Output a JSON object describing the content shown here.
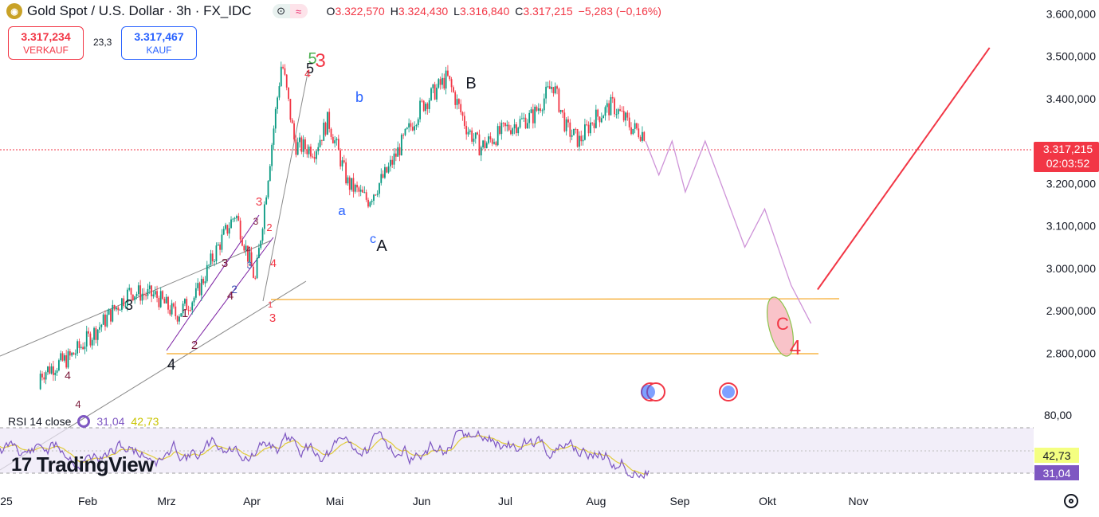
{
  "header": {
    "icon": "gold-coin-icon",
    "title": "Gold Spot / U.S. Dollar · 3h · FX_IDC",
    "ohlc": [
      {
        "k": "O",
        "v": "3.322,570"
      },
      {
        "k": "H",
        "v": "3.324,430"
      },
      {
        "k": "L",
        "v": "3.316,840"
      },
      {
        "k": "C",
        "v": "3.317,215"
      },
      {
        "k": "",
        "v": "−5,283 (−0,16%)"
      }
    ]
  },
  "trade": {
    "sell_price": "3.317,234",
    "sell_label": "VERKAUF",
    "spread": "23,3",
    "buy_price": "3.317,467",
    "buy_label": "KAUF"
  },
  "rsi_legend": {
    "label": "RSI 14 close",
    "v1": "31,04",
    "v2": "42,73"
  },
  "logo": "TradingView",
  "chart_data": [
    {
      "type": "line",
      "title": "Gold Spot / U.S. Dollar · 3h · FX_IDC",
      "y_axis_ticks": [
        "3.600,000",
        "3.500,000",
        "3.400,000",
        "3.300,000",
        "3.200,000",
        "3.100,000",
        "3.000,000",
        "2.900,000",
        "2.800,000"
      ],
      "ylim": [
        2750,
        3660
      ],
      "x_ticks": [
        "25",
        "Feb",
        "Mrz",
        "Apr",
        "Mai",
        "Jun",
        "Jul",
        "Aug",
        "Sep",
        "Okt",
        "Nov"
      ],
      "series": [
        {
          "values": [
            [
              0,
              2715
            ],
            [
              0.5,
              2748
            ],
            [
              1,
              2790
            ],
            [
              1.4,
              2855
            ],
            [
              1.9,
              2945
            ],
            [
              2.3,
              2935
            ],
            [
              2.6,
              2890
            ],
            [
              2.9,
              2935
            ],
            [
              3.2,
              3040
            ],
            [
              3.5,
              3130
            ],
            [
              3.8,
              2970
            ],
            [
              4.2,
              3490
            ],
            [
              4.4,
              3290
            ],
            [
              4.7,
              3280
            ],
            [
              4.9,
              3350
            ],
            [
              5.2,
              3200
            ],
            [
              5.5,
              3160
            ],
            [
              5.8,
              3230
            ],
            [
              6.3,
              3380
            ],
            [
              6.7,
              3450
            ],
            [
              7.0,
              3330
            ],
            [
              7.2,
              3285
            ],
            [
              7.6,
              3330
            ],
            [
              8.0,
              3360
            ],
            [
              8.3,
              3435
            ],
            [
              8.5,
              3330
            ],
            [
              8.7,
              3300
            ],
            [
              8.9,
              3350
            ],
            [
              9.2,
              3385
            ],
            [
              9.5,
              3330
            ],
            [
              9.7,
              3317
            ]
          ]
        }
      ],
      "last_price": "3.317,215",
      "countdown": "02:03:52",
      "wave_labels": [
        "5",
        "3",
        "5",
        "B",
        "b",
        "a",
        "c",
        "A",
        "3",
        "2",
        "3",
        "4",
        "2",
        "4",
        "1",
        "2",
        "4",
        "3",
        "4",
        "3",
        "1",
        "3",
        "4",
        "C",
        "4",
        "3",
        "4",
        "4"
      ],
      "projection_path": [
        [
          9.7,
          3300
        ],
        [
          9.9,
          3220
        ],
        [
          10.1,
          3300
        ],
        [
          10.3,
          3180
        ],
        [
          10.6,
          3300
        ],
        [
          11.2,
          3050
        ],
        [
          11.5,
          3140
        ],
        [
          11.9,
          2960
        ],
        [
          12.2,
          2870
        ]
      ],
      "projection_target": [
        [
          12.3,
          2950
        ],
        [
          14.9,
          3520
        ]
      ],
      "colors": {
        "up": "#089981",
        "down": "#f23645",
        "projection": "#ce93d8",
        "target": "#f23645",
        "support": "#f5a623"
      }
    },
    {
      "type": "line",
      "title": "RSI 14 close",
      "y_axis_ticks": [
        "80,00"
      ],
      "rsi_value": "31,04",
      "rsi_ma_value": "42,73",
      "band": [
        30,
        70
      ]
    }
  ]
}
